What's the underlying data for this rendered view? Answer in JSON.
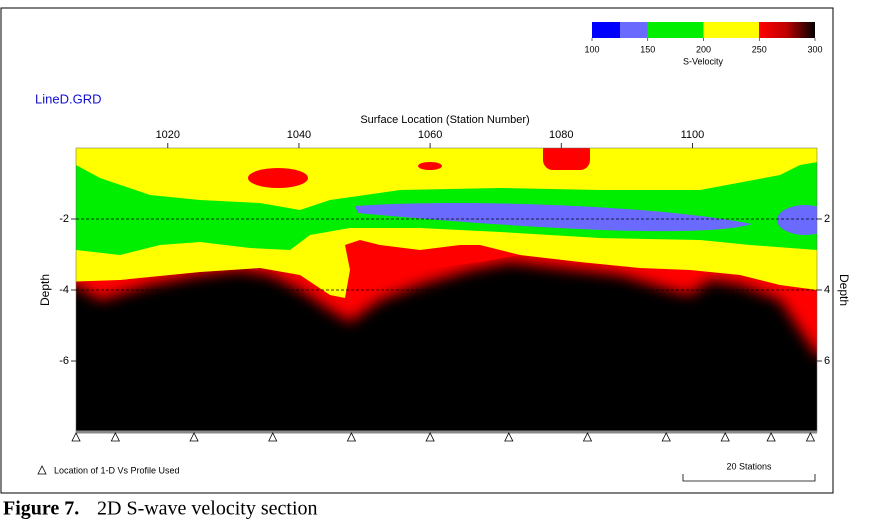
{
  "chart_data": {
    "type": "contour",
    "title": "LineD.GRD",
    "xlabel": "Surface Location (Station Number)",
    "ylabel": "Depth",
    "y2label": "Depth",
    "xlim": [
      1006,
      1119
    ],
    "xticks": [
      1020,
      1040,
      1060,
      1080,
      1100
    ],
    "ylim": [
      -8,
      0
    ],
    "yticks": [
      -2,
      -4,
      -6
    ],
    "y2lim": [
      -8,
      0
    ],
    "y2ticks": [
      {
        "value": -2,
        "label": "2"
      },
      {
        "value": -4,
        "label": "4"
      },
      {
        "value": -6,
        "label": "6"
      }
    ],
    "reference_lines": [
      -2,
      -4
    ],
    "colorbar": {
      "label": "S-Velocity",
      "lim": [
        100,
        300
      ],
      "ticks": [
        100,
        150,
        200,
        250,
        300
      ]
    },
    "stations": [
      1006,
      1012,
      1024,
      1036,
      1048,
      1060,
      1072,
      1084,
      1096,
      1105,
      1112,
      1118
    ],
    "stations_label": "Location of 1-D Vs Profile Used",
    "scale_bar_label": "20 Stations"
  },
  "caption": {
    "number": "Figure 7.",
    "text": "2D S-wave velocity section"
  }
}
